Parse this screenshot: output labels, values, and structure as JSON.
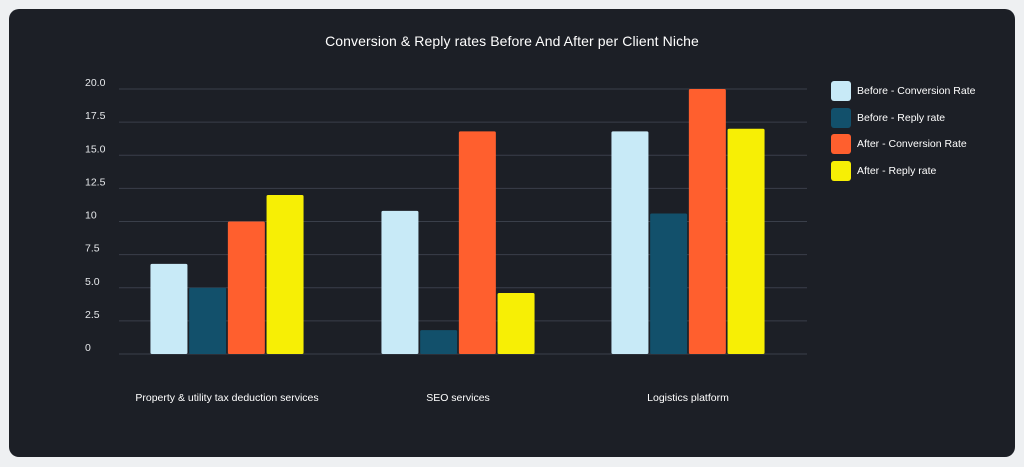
{
  "chart_data": {
    "type": "bar",
    "title": "Conversion & Reply rates Before And After per Client Niche",
    "xlabel": "",
    "ylabel": "",
    "ylim": [
      0,
      20
    ],
    "yticks": [
      "0",
      "2.5",
      "5.0",
      "7.5",
      "10",
      "12.5",
      "15.0",
      "17.5",
      "20.0"
    ],
    "grid": true,
    "legend_position": "right",
    "categories": [
      "Property & utility tax deduction services",
      "SEO services",
      "Logistics platform"
    ],
    "series": [
      {
        "name": "Before - Conversion Rate",
        "color": "#c8eaf7",
        "values": [
          6.8,
          10.8,
          16.8
        ]
      },
      {
        "name": "Before - Reply rate",
        "color": "#12506b",
        "values": [
          5.0,
          1.8,
          10.6
        ]
      },
      {
        "name": "After - Conversion Rate",
        "color": "#ff5f2e",
        "values": [
          10.0,
          16.8,
          20.0
        ]
      },
      {
        "name": "After - Reply rate",
        "color": "#f7ef05",
        "values": [
          12.0,
          4.6,
          17.0
        ]
      }
    ]
  }
}
